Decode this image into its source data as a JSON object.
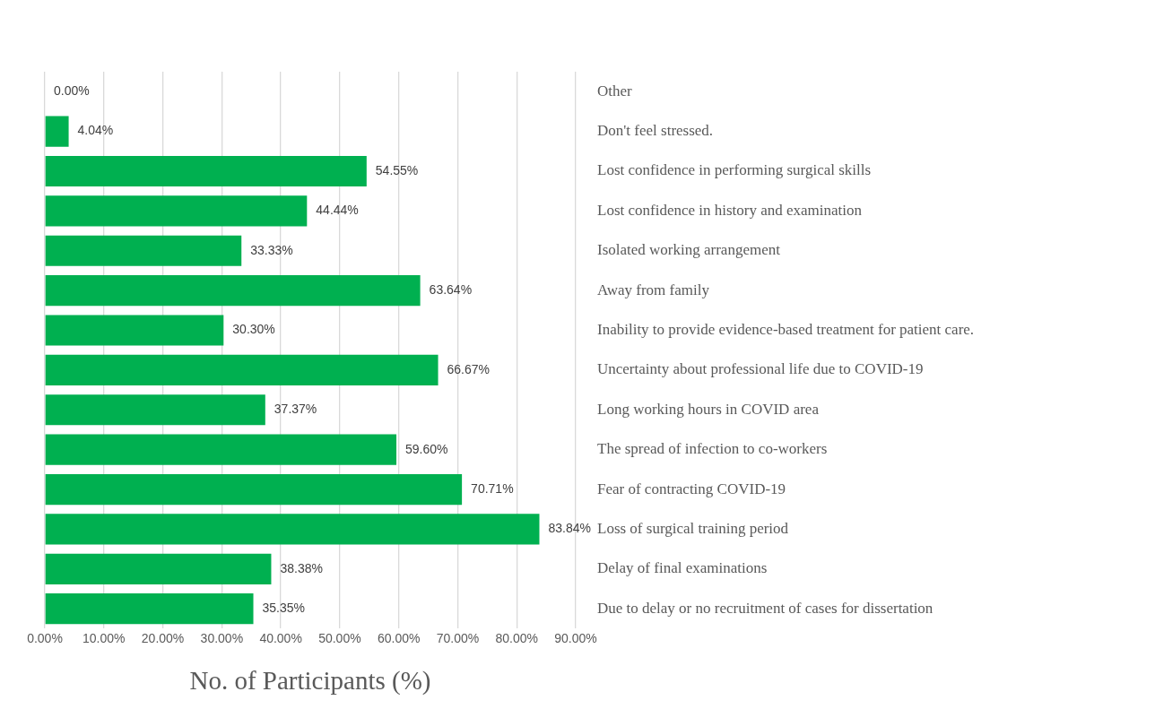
{
  "chart_data": {
    "type": "bar",
    "orientation": "horizontal",
    "xlabel": "No. of Participants (%)",
    "categories": [
      "Other",
      "Don't feel stressed.",
      "Lost confidence in performing surgical skills",
      "Lost confidence in history and examination",
      "Isolated working arrangement",
      "Away from family",
      "Inability to provide evidence-based treatment for patient care.",
      "Uncertainty about professional life due to COVID-19",
      "Long working hours in COVID area",
      "The spread of infection to co-workers",
      "Fear of contracting COVID-19",
      "Loss of surgical training period",
      "Delay of final examinations",
      "Due to delay or no recruitment of cases for dissertation"
    ],
    "values": [
      0,
      4.04,
      54.55,
      44.44,
      33.33,
      63.64,
      30.3,
      66.67,
      37.37,
      59.6,
      70.71,
      83.84,
      38.38,
      35.35
    ],
    "value_labels": [
      "0.00%",
      "4.04%",
      "54.55%",
      "44.44%",
      "33.33%",
      "63.64%",
      "30.30%",
      "66.67%",
      "37.37%",
      "59.60%",
      "70.71%",
      "83.84%",
      "38.38%",
      "35.35%"
    ],
    "color": "#00b050",
    "xlim": [
      0,
      90
    ],
    "xticks": [
      {
        "value": 0,
        "label": "0.00%"
      },
      {
        "value": 10,
        "label": "10.00%"
      },
      {
        "value": 20,
        "label": "20.00%"
      },
      {
        "value": 30,
        "label": "30.00%"
      },
      {
        "value": 40,
        "label": "40.00%"
      },
      {
        "value": 50,
        "label": "50.00%"
      },
      {
        "value": 60,
        "label": "60.00%"
      },
      {
        "value": 70,
        "label": "70.00%"
      },
      {
        "value": 80,
        "label": "80.00%"
      },
      {
        "value": 90,
        "label": "90.00%"
      }
    ],
    "grid": "x"
  }
}
